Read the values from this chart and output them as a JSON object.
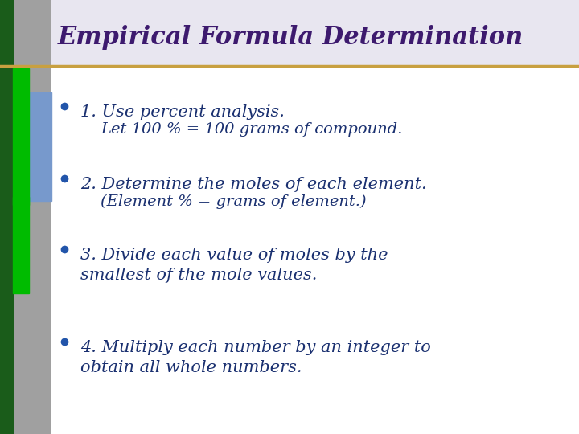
{
  "title": "Empirical Formula Determination",
  "title_color": "#3D1A6E",
  "title_font_size": 22,
  "bg_color": "#E8E6F0",
  "body_bg": "#FFFFFF",
  "separator_color": "#C8A040",
  "col_dark_green": "#1A5C1A",
  "col_bright_green": "#00BB00",
  "col_gray_dark": "#808080",
  "col_gray_mid": "#A0A0A0",
  "col_blue": "#7799CC",
  "bullet_color": "#2255AA",
  "text_color": "#1A3070",
  "items": [
    [
      "1. Use percent analysis.",
      "Let 100 % = 100 grams of compound."
    ],
    [
      "2. Determine the moles of each element.",
      "(Element % = grams of element.)"
    ],
    [
      "3. Divide each value of moles by the\nsmallest of the mole values.",
      ""
    ],
    [
      "4. Multiply each number by an integer to\nobtain all whole numbers.",
      ""
    ]
  ],
  "font_size_main": 15,
  "font_size_sub": 14
}
